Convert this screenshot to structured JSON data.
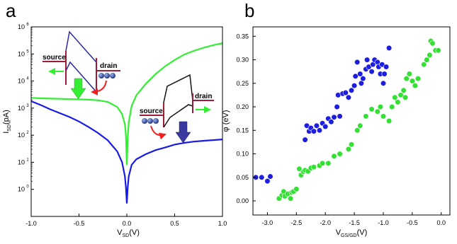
{
  "panels": {
    "a": {
      "label": "a"
    },
    "b": {
      "label": "b"
    }
  },
  "chart_data": [
    {
      "type": "line",
      "panel": "a",
      "xlabel_main": "V",
      "xlabel_sub": "SD",
      "xlabel_unit": "(V)",
      "ylabel_main": "I",
      "ylabel_sub": "SD",
      "ylabel_unit": "(pA)",
      "xlim": [
        -1.0,
        1.0
      ],
      "ylim": [
        0.1,
        1000000
      ],
      "yscale": "log",
      "xticks": [
        -1.0,
        -0.5,
        0.0,
        0.5,
        1.0
      ],
      "xtick_labels": [
        "-1.0",
        "-0.5",
        "0.0",
        "0.5",
        "1.0"
      ],
      "ytick_exponents": [
        0,
        1,
        2,
        3,
        4,
        5,
        6
      ],
      "ytick_base": "10",
      "series": [
        {
          "color": "#33ee33",
          "x": [
            -1.0,
            -0.9,
            -0.8,
            -0.7,
            -0.6,
            -0.5,
            -0.4,
            -0.3,
            -0.2,
            -0.1,
            -0.05,
            -0.02,
            -0.01,
            0.0,
            0.01,
            0.02,
            0.05,
            0.1,
            0.2,
            0.3,
            0.4,
            0.5,
            0.6,
            0.7,
            0.8,
            0.9,
            1.0
          ],
          "y": [
            2400,
            2300,
            2250,
            2200,
            2150,
            2100,
            2050,
            1950,
            1700,
            1100,
            600,
            250,
            100,
            8,
            80,
            300,
            1200,
            3000,
            8000,
            18000,
            35000,
            60000,
            95000,
            130000,
            170000,
            210000,
            250000
          ]
        },
        {
          "color": "#1a1ae6",
          "x": [
            -1.0,
            -0.9,
            -0.8,
            -0.7,
            -0.6,
            -0.5,
            -0.4,
            -0.3,
            -0.2,
            -0.1,
            -0.05,
            -0.02,
            -0.01,
            0.0,
            0.01,
            0.02,
            0.05,
            0.1,
            0.2,
            0.3,
            0.4,
            0.5,
            0.6,
            0.7,
            0.8,
            0.9,
            1.0
          ],
          "y": [
            1800,
            1300,
            900,
            650,
            470,
            320,
            200,
            120,
            65,
            25,
            10,
            3,
            1.2,
            0.3,
            1.2,
            3,
            8,
            13,
            20,
            28,
            35,
            45,
            52,
            58,
            62,
            66,
            70
          ]
        }
      ],
      "annotations": {
        "inset1_source": "source",
        "inset1_drain": "drain",
        "inset2_source": "source",
        "inset2_drain": "drain"
      }
    },
    {
      "type": "scatter",
      "panel": "b",
      "xlabel_main": "V",
      "xlabel_sub": "GS/GD",
      "xlabel_unit": "(V)",
      "ylabel": "φ (eV)",
      "xlim": [
        -3.25,
        0.15
      ],
      "ylim": [
        -0.03,
        0.37
      ],
      "xticks": [
        -3.0,
        -2.5,
        -2.0,
        -1.5,
        -1.0,
        -0.5,
        0.0
      ],
      "xtick_labels": [
        "-3.0",
        "-2.5",
        "-2.0",
        "-1.5",
        "-1.0",
        "-0.5",
        "0.0"
      ],
      "yticks": [
        0.0,
        0.05,
        0.1,
        0.15,
        0.2,
        0.25,
        0.3,
        0.35
      ],
      "ytick_labels": [
        "0.00",
        "0.05",
        "0.10",
        "0.15",
        "0.20",
        "0.25",
        "0.30",
        "0.35"
      ],
      "series": [
        {
          "color": "#1e1ee0",
          "points": [
            [
              -3.2,
              0.05
            ],
            [
              -3.1,
              0.05
            ],
            [
              -3.0,
              0.042
            ],
            [
              -2.95,
              0.052
            ],
            [
              -2.35,
              0.13
            ],
            [
              -2.32,
              0.16
            ],
            [
              -2.28,
              0.148
            ],
            [
              -2.25,
              0.155
            ],
            [
              -2.2,
              0.148
            ],
            [
              -2.15,
              0.16
            ],
            [
              -2.1,
              0.15
            ],
            [
              -2.05,
              0.165
            ],
            [
              -2.0,
              0.158
            ],
            [
              -1.95,
              0.175
            ],
            [
              -1.9,
              0.168
            ],
            [
              -1.85,
              0.178
            ],
            [
              -1.8,
              0.2
            ],
            [
              -1.78,
              0.225
            ],
            [
              -1.75,
              0.18
            ],
            [
              -1.7,
              0.228
            ],
            [
              -1.65,
              0.23
            ],
            [
              -1.6,
              0.22
            ],
            [
              -1.55,
              0.235
            ],
            [
              -1.5,
              0.245
            ],
            [
              -1.48,
              0.265
            ],
            [
              -1.45,
              0.295
            ],
            [
              -1.4,
              0.27
            ],
            [
              -1.38,
              0.25
            ],
            [
              -1.35,
              0.26
            ],
            [
              -1.3,
              0.28
            ],
            [
              -1.28,
              0.3
            ],
            [
              -1.25,
              0.285
            ],
            [
              -1.2,
              0.275
            ],
            [
              -1.18,
              0.29
            ],
            [
              -1.15,
              0.3
            ],
            [
              -1.1,
              0.295
            ],
            [
              -1.08,
              0.285
            ],
            [
              -1.05,
              0.27
            ],
            [
              -1.02,
              0.29
            ],
            [
              -1.0,
              0.25
            ],
            [
              -0.98,
              0.27
            ],
            [
              -0.95,
              0.285
            ],
            [
              -0.9,
              0.325
            ]
          ]
        },
        {
          "color": "#33e033",
          "points": [
            [
              -2.8,
              0.005
            ],
            [
              -2.75,
              0.012
            ],
            [
              -2.72,
              0.02
            ],
            [
              -2.7,
              0.01
            ],
            [
              -2.65,
              0.015
            ],
            [
              -2.6,
              0.005
            ],
            [
              -2.58,
              0.018
            ],
            [
              -2.55,
              0.02
            ],
            [
              -2.5,
              0.025
            ],
            [
              -2.45,
              0.068
            ],
            [
              -2.42,
              0.055
            ],
            [
              -2.38,
              0.062
            ],
            [
              -2.35,
              0.065
            ],
            [
              -2.3,
              0.063
            ],
            [
              -2.25,
              0.07
            ],
            [
              -2.2,
              0.072
            ],
            [
              -2.1,
              0.075
            ],
            [
              -2.05,
              0.08
            ],
            [
              -1.95,
              0.08
            ],
            [
              -1.85,
              0.095
            ],
            [
              -1.75,
              0.1
            ],
            [
              -1.6,
              0.11
            ],
            [
              -1.55,
              0.12
            ],
            [
              -1.45,
              0.15
            ],
            [
              -1.4,
              0.16
            ],
            [
              -1.3,
              0.18
            ],
            [
              -1.2,
              0.195
            ],
            [
              -1.1,
              0.19
            ],
            [
              -1.05,
              0.2
            ],
            [
              -1.0,
              0.18
            ],
            [
              -0.9,
              0.17
            ],
            [
              -0.85,
              0.2
            ],
            [
              -0.8,
              0.22
            ],
            [
              -0.75,
              0.21
            ],
            [
              -0.7,
              0.225
            ],
            [
              -0.65,
              0.235
            ],
            [
              -0.62,
              0.22
            ],
            [
              -0.6,
              0.26
            ],
            [
              -0.55,
              0.27
            ],
            [
              -0.5,
              0.255
            ],
            [
              -0.45,
              0.245
            ],
            [
              -0.4,
              0.26
            ],
            [
              -0.3,
              0.29
            ],
            [
              -0.25,
              0.3
            ],
            [
              -0.2,
              0.31
            ],
            [
              -0.18,
              0.34
            ],
            [
              -0.15,
              0.335
            ],
            [
              -0.1,
              0.32
            ],
            [
              -0.05,
              0.32
            ]
          ]
        }
      ]
    }
  ]
}
